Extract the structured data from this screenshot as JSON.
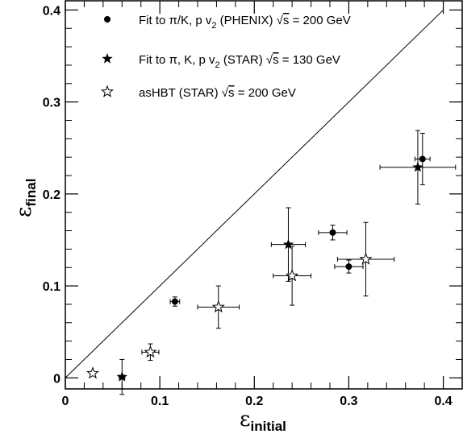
{
  "chart_data": {
    "type": "scatter",
    "xlim": [
      0,
      0.42
    ],
    "ylim": [
      -0.012,
      0.41
    ],
    "x_ticks": [
      {
        "value": 0,
        "label": "0"
      },
      {
        "value": 0.1,
        "label": "0.1"
      },
      {
        "value": 0.2,
        "label": "0.2"
      },
      {
        "value": 0.3,
        "label": "0.3"
      },
      {
        "value": 0.4,
        "label": "0.4"
      }
    ],
    "y_ticks": [
      {
        "value": 0,
        "label": "0"
      },
      {
        "value": 0.1,
        "label": "0.1"
      },
      {
        "value": 0.2,
        "label": "0.2"
      },
      {
        "value": 0.3,
        "label": "0.3"
      },
      {
        "value": 0.4,
        "label": "0.4"
      }
    ],
    "xlabel": {
      "symbol": "ε",
      "subscript": "initial"
    },
    "ylabel": {
      "symbol": "ε",
      "subscript": "final"
    },
    "legend_position": "top-left",
    "reference_line": {
      "x": [
        0,
        0.4
      ],
      "y": [
        0,
        0.4
      ]
    },
    "series": [
      {
        "name": "Fit to π/K, p v2 (PHENIX) √s = 200 GeV",
        "marker": "circle",
        "points": [
          {
            "x": 0.116,
            "y": 0.083,
            "xerr": 0.005,
            "yerr": 0.005
          },
          {
            "x": 0.283,
            "y": 0.158,
            "xerr": 0.015,
            "yerr": 0.008
          },
          {
            "x": 0.3,
            "y": 0.121,
            "xerr": 0.015,
            "yerr": 0.007
          },
          {
            "x": 0.378,
            "y": 0.238,
            "xerr": 0.008,
            "yerr": 0.028
          }
        ]
      },
      {
        "name": "Fit to π, K, p v2 (STAR) √s = 130 GeV",
        "marker": "star-filled",
        "points": [
          {
            "x": 0.06,
            "y": 0.001,
            "xerr": 0.003,
            "yerr": 0.019
          },
          {
            "x": 0.236,
            "y": 0.145,
            "xerr": 0.018,
            "yerr": 0.04
          },
          {
            "x": 0.373,
            "y": 0.229,
            "xerr": 0.04,
            "yerr": 0.04
          }
        ]
      },
      {
        "name": "asHBT (STAR) √s = 200 GeV",
        "marker": "star-open",
        "points": [
          {
            "x": 0.029,
            "y": 0.005,
            "xerr": 0.0,
            "yerr": 0.0
          },
          {
            "x": 0.09,
            "y": 0.028,
            "xerr": 0.009,
            "yerr": 0.009
          },
          {
            "x": 0.162,
            "y": 0.077,
            "xerr": 0.022,
            "yerr": 0.023
          },
          {
            "x": 0.24,
            "y": 0.111,
            "xerr": 0.02,
            "yerr": 0.032
          },
          {
            "x": 0.318,
            "y": 0.129,
            "xerr": 0.03,
            "yerr": 0.04
          }
        ]
      }
    ]
  },
  "legend": [
    {
      "marker": "circle",
      "parts": [
        "Fit to  π/K, p v",
        "2",
        " (PHENIX) ",
        "√",
        "s",
        " = 200 GeV"
      ]
    },
    {
      "marker": "star-filled",
      "parts": [
        "Fit to  π, K, p v",
        "2",
        " (STAR) ",
        "√",
        "s",
        " = 130 GeV"
      ]
    },
    {
      "marker": "star-open",
      "parts": [
        "asHBT (STAR) ",
        "",
        "",
        "√",
        "s",
        " = 200 GeV"
      ]
    }
  ]
}
